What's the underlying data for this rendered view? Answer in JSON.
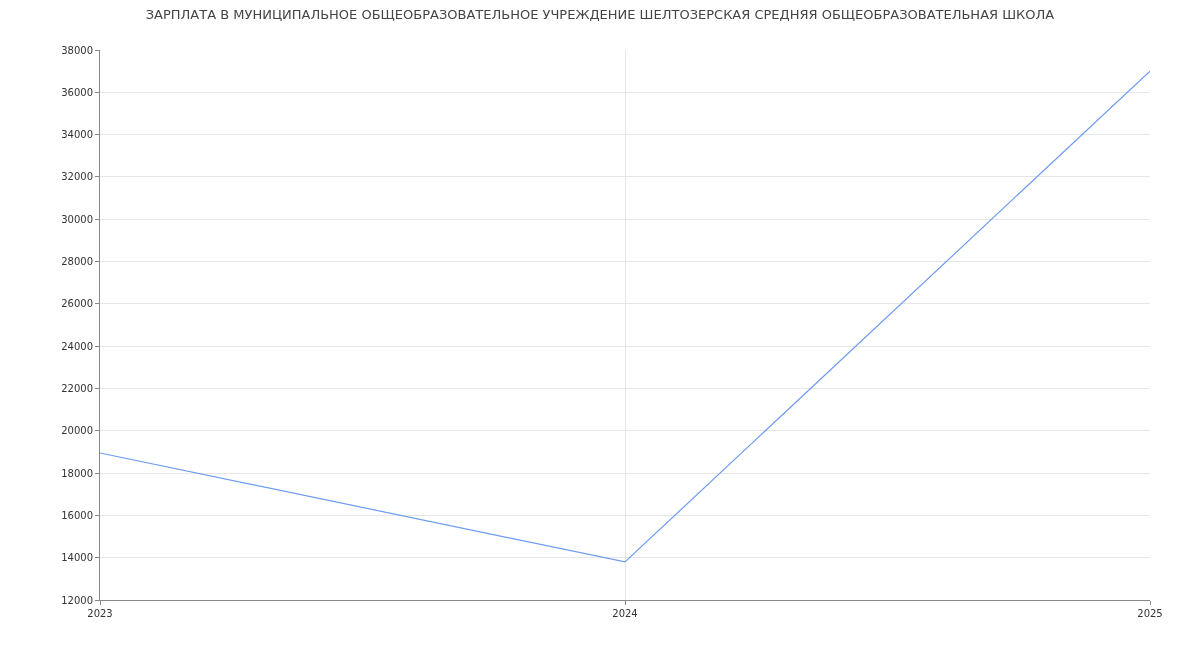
{
  "chart_data": {
    "type": "line",
    "title": "ЗАРПЛАТА В МУНИЦИПАЛЬНОЕ ОБЩЕОБРАЗОВАТЕЛЬНОЕ УЧРЕЖДЕНИЕ ШЕЛТОЗЕРСКАЯ СРЕДНЯЯ ОБЩЕОБРАЗОВАТЕЛЬНАЯ ШКОЛА",
    "x": [
      2023,
      2024,
      2025
    ],
    "series": [
      {
        "color": "#6d9bf1",
        "values": [
          18950,
          13800,
          37000
        ]
      }
    ],
    "xlim": [
      2023,
      2025
    ],
    "xticks": [
      2023,
      2024,
      2025
    ],
    "ylim": [
      12000,
      38000
    ],
    "yticks": [
      12000,
      14000,
      16000,
      18000,
      20000,
      22000,
      24000,
      26000,
      28000,
      30000,
      32000,
      34000,
      36000,
      38000
    ],
    "grid": true,
    "marker": "none",
    "line_style": "solid"
  }
}
